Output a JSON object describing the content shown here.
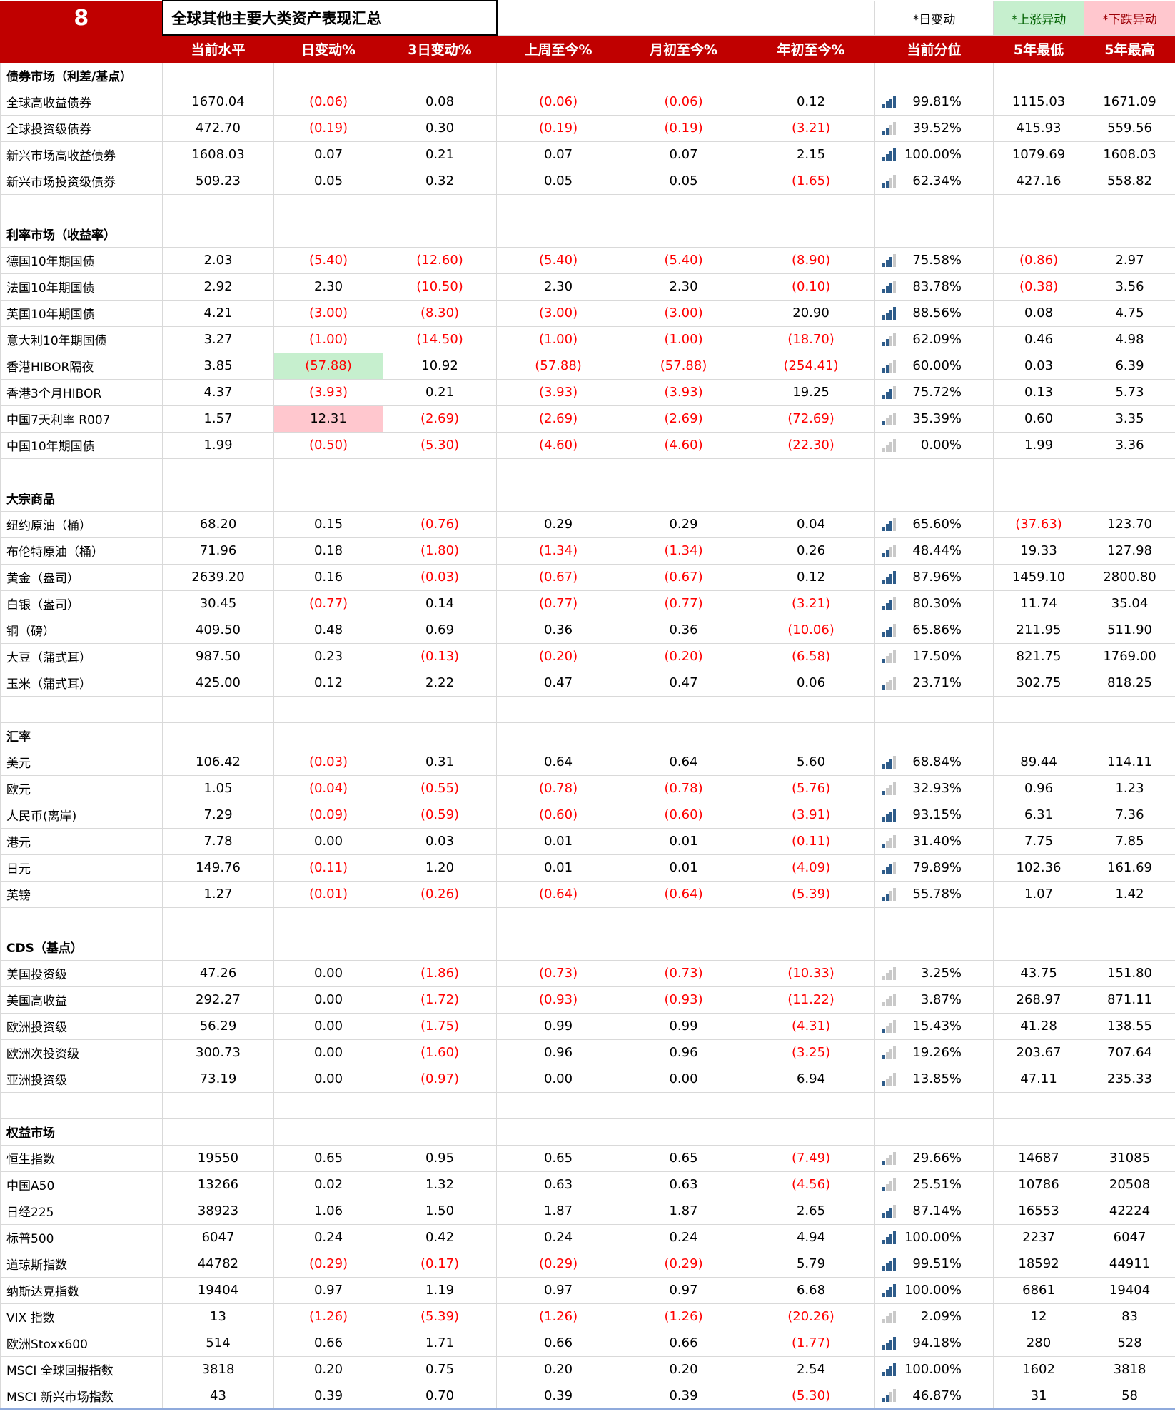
{
  "page": {
    "number": "8",
    "title": "全球其他主要大类资产表现汇总"
  },
  "legend": {
    "day_change": "*日变动",
    "up_anomaly": "*上涨异动",
    "down_anomaly": "*下跌异动"
  },
  "colors": {
    "header_bg": "#C00000",
    "negative": "#FF0000",
    "up_bg": "#C6EFCE",
    "up_text": "#006100",
    "down_bg": "#FFC7CE",
    "down_text": "#9C0006",
    "bar_fill": "#2E5C8A",
    "bar_empty": "#C9C9C9"
  },
  "columns": [
    "当前水平",
    "日变动%",
    "3日变动%",
    "上周至今%",
    "月初至今%",
    "年初至今%",
    "当前分位",
    "5年最低",
    "5年最高"
  ],
  "sections": [
    {
      "header": "债券市场（利差/基点）",
      "rows": [
        {
          "label": "全球高收益债券",
          "values": [
            "1670.04",
            "(0.06)",
            "0.08",
            "(0.06)",
            "(0.06)",
            "0.12",
            "99.81%",
            "1115.03",
            "1671.09"
          ]
        },
        {
          "label": "全球投资级债券",
          "values": [
            "472.70",
            "(0.19)",
            "0.30",
            "(0.19)",
            "(0.19)",
            "(3.21)",
            "39.52%",
            "415.93",
            "559.56"
          ]
        },
        {
          "label": "新兴市场高收益债券",
          "values": [
            "1608.03",
            "0.07",
            "0.21",
            "0.07",
            "0.07",
            "2.15",
            "100.00%",
            "1079.69",
            "1608.03"
          ]
        },
        {
          "label": "新兴市场投资级债券",
          "values": [
            "509.23",
            "0.05",
            "0.32",
            "0.05",
            "0.05",
            "(1.65)",
            "62.34%",
            "427.16",
            "558.82"
          ]
        }
      ]
    },
    {
      "header": "利率市场（收益率）",
      "rows": [
        {
          "label": "德国10年期国债",
          "values": [
            "2.03",
            "(5.40)",
            "(12.60)",
            "(5.40)",
            "(5.40)",
            "(8.90)",
            "75.58%",
            "(0.86)",
            "2.97"
          ]
        },
        {
          "label": "法国10年期国债",
          "values": [
            "2.92",
            "2.30",
            "(10.50)",
            "2.30",
            "2.30",
            "(0.10)",
            "83.78%",
            "(0.38)",
            "3.56"
          ]
        },
        {
          "label": "英国10年期国债",
          "values": [
            "4.21",
            "(3.00)",
            "(8.30)",
            "(3.00)",
            "(3.00)",
            "20.90",
            "88.56%",
            "0.08",
            "4.75"
          ]
        },
        {
          "label": "意大利10年期国债",
          "values": [
            "3.27",
            "(1.00)",
            "(14.50)",
            "(1.00)",
            "(1.00)",
            "(18.70)",
            "62.09%",
            "0.46",
            "4.98"
          ]
        },
        {
          "label": "香港HIBOR隔夜",
          "values": [
            "3.85",
            "(57.88)",
            "10.92",
            "(57.88)",
            "(57.88)",
            "(254.41)",
            "60.00%",
            "0.03",
            "6.39"
          ],
          "hl": {
            "1": "up"
          }
        },
        {
          "label": "香港3个月HIBOR",
          "values": [
            "4.37",
            "(3.93)",
            "0.21",
            "(3.93)",
            "(3.93)",
            "19.25",
            "75.72%",
            "0.13",
            "5.73"
          ]
        },
        {
          "label": "中国7天利率 R007",
          "values": [
            "1.57",
            "12.31",
            "(2.69)",
            "(2.69)",
            "(2.69)",
            "(72.69)",
            "35.39%",
            "0.60",
            "3.35"
          ],
          "hl": {
            "1": "down"
          }
        },
        {
          "label": "中国10年期国债",
          "values": [
            "1.99",
            "(0.50)",
            "(5.30)",
            "(4.60)",
            "(4.60)",
            "(22.30)",
            "0.00%",
            "1.99",
            "3.36"
          ]
        }
      ]
    },
    {
      "header": "大宗商品",
      "rows": [
        {
          "label": "纽约原油（桶）",
          "values": [
            "68.20",
            "0.15",
            "(0.76)",
            "0.29",
            "0.29",
            "0.04",
            "65.60%",
            "(37.63)",
            "123.70"
          ]
        },
        {
          "label": "布伦特原油（桶）",
          "values": [
            "71.96",
            "0.18",
            "(1.80)",
            "(1.34)",
            "(1.34)",
            "0.26",
            "48.44%",
            "19.33",
            "127.98"
          ]
        },
        {
          "label": "黄金（盎司）",
          "values": [
            "2639.20",
            "0.16",
            "(0.03)",
            "(0.67)",
            "(0.67)",
            "0.12",
            "87.96%",
            "1459.10",
            "2800.80"
          ]
        },
        {
          "label": "白银（盎司）",
          "values": [
            "30.45",
            "(0.77)",
            "0.14",
            "(0.77)",
            "(0.77)",
            "(3.21)",
            "80.30%",
            "11.74",
            "35.04"
          ]
        },
        {
          "label": "铜（磅）",
          "values": [
            "409.50",
            "0.48",
            "0.69",
            "0.36",
            "0.36",
            "(10.06)",
            "65.86%",
            "211.95",
            "511.90"
          ]
        },
        {
          "label": "大豆（蒲式耳）",
          "values": [
            "987.50",
            "0.23",
            "(0.13)",
            "(0.20)",
            "(0.20)",
            "(6.58)",
            "17.50%",
            "821.75",
            "1769.00"
          ]
        },
        {
          "label": "玉米（蒲式耳）",
          "values": [
            "425.00",
            "0.12",
            "2.22",
            "0.47",
            "0.47",
            "0.06",
            "23.71%",
            "302.75",
            "818.25"
          ]
        }
      ]
    },
    {
      "header": "汇率",
      "rows": [
        {
          "label": "美元",
          "values": [
            "106.42",
            "(0.03)",
            "0.31",
            "0.64",
            "0.64",
            "5.60",
            "68.84%",
            "89.44",
            "114.11"
          ]
        },
        {
          "label": "欧元",
          "values": [
            "1.05",
            "(0.04)",
            "(0.55)",
            "(0.78)",
            "(0.78)",
            "(5.76)",
            "32.93%",
            "0.96",
            "1.23"
          ]
        },
        {
          "label": "人民币(离岸)",
          "values": [
            "7.29",
            "(0.09)",
            "(0.59)",
            "(0.60)",
            "(0.60)",
            "(3.91)",
            "93.15%",
            "6.31",
            "7.36"
          ]
        },
        {
          "label": "港元",
          "values": [
            "7.78",
            "0.00",
            "0.03",
            "0.01",
            "0.01",
            "(0.11)",
            "31.40%",
            "7.75",
            "7.85"
          ]
        },
        {
          "label": "日元",
          "values": [
            "149.76",
            "(0.11)",
            "1.20",
            "0.01",
            "0.01",
            "(4.09)",
            "79.89%",
            "102.36",
            "161.69"
          ]
        },
        {
          "label": "英镑",
          "values": [
            "1.27",
            "(0.01)",
            "(0.26)",
            "(0.64)",
            "(0.64)",
            "(5.39)",
            "55.78%",
            "1.07",
            "1.42"
          ]
        }
      ]
    },
    {
      "header": "CDS（基点）",
      "rows": [
        {
          "label": "美国投资级",
          "values": [
            "47.26",
            "0.00",
            "(1.86)",
            "(0.73)",
            "(0.73)",
            "(10.33)",
            "3.25%",
            "43.75",
            "151.80"
          ]
        },
        {
          "label": "美国高收益",
          "values": [
            "292.27",
            "0.00",
            "(1.72)",
            "(0.93)",
            "(0.93)",
            "(11.22)",
            "3.87%",
            "268.97",
            "871.11"
          ]
        },
        {
          "label": "欧洲投资级",
          "values": [
            "56.29",
            "0.00",
            "(1.75)",
            "0.99",
            "0.99",
            "(4.31)",
            "15.43%",
            "41.28",
            "138.55"
          ]
        },
        {
          "label": "欧洲次投资级",
          "values": [
            "300.73",
            "0.00",
            "(1.60)",
            "0.96",
            "0.96",
            "(3.25)",
            "19.26%",
            "203.67",
            "707.64"
          ]
        },
        {
          "label": "亚洲投资级",
          "values": [
            "73.19",
            "0.00",
            "(0.97)",
            "0.00",
            "0.00",
            "6.94",
            "13.85%",
            "47.11",
            "235.33"
          ]
        }
      ]
    },
    {
      "header": "权益市场",
      "rows": [
        {
          "label": "恒生指数",
          "values": [
            "19550",
            "0.65",
            "0.95",
            "0.65",
            "0.65",
            "(7.49)",
            "29.66%",
            "14687",
            "31085"
          ]
        },
        {
          "label": "中国A50",
          "values": [
            "13266",
            "0.02",
            "1.32",
            "0.63",
            "0.63",
            "(4.56)",
            "25.51%",
            "10786",
            "20508"
          ]
        },
        {
          "label": "日经225",
          "values": [
            "38923",
            "1.06",
            "1.50",
            "1.87",
            "1.87",
            "2.65",
            "87.14%",
            "16553",
            "42224"
          ]
        },
        {
          "label": "标普500",
          "values": [
            "6047",
            "0.24",
            "0.42",
            "0.24",
            "0.24",
            "4.94",
            "100.00%",
            "2237",
            "6047"
          ]
        },
        {
          "label": "道琼斯指数",
          "values": [
            "44782",
            "(0.29)",
            "(0.17)",
            "(0.29)",
            "(0.29)",
            "5.79",
            "99.51%",
            "18592",
            "44911"
          ]
        },
        {
          "label": "纳斯达克指数",
          "values": [
            "19404",
            "0.97",
            "1.19",
            "0.97",
            "0.97",
            "6.68",
            "100.00%",
            "6861",
            "19404"
          ]
        },
        {
          "label": "VIX 指数",
          "values": [
            "13",
            "(1.26)",
            "(5.39)",
            "(1.26)",
            "(1.26)",
            "(20.26)",
            "2.09%",
            "12",
            "83"
          ]
        },
        {
          "label": "欧洲Stoxx600",
          "values": [
            "514",
            "0.66",
            "1.71",
            "0.66",
            "0.66",
            "(1.77)",
            "94.18%",
            "280",
            "528"
          ]
        },
        {
          "label": "MSCI 全球回报指数",
          "values": [
            "3818",
            "0.20",
            "0.75",
            "0.20",
            "0.20",
            "2.54",
            "100.00%",
            "1602",
            "3818"
          ]
        },
        {
          "label": "MSCI 新兴市场指数",
          "values": [
            "43",
            "0.39",
            "0.70",
            "0.39",
            "0.39",
            "(5.30)",
            "46.87%",
            "31",
            "58"
          ]
        }
      ]
    }
  ]
}
